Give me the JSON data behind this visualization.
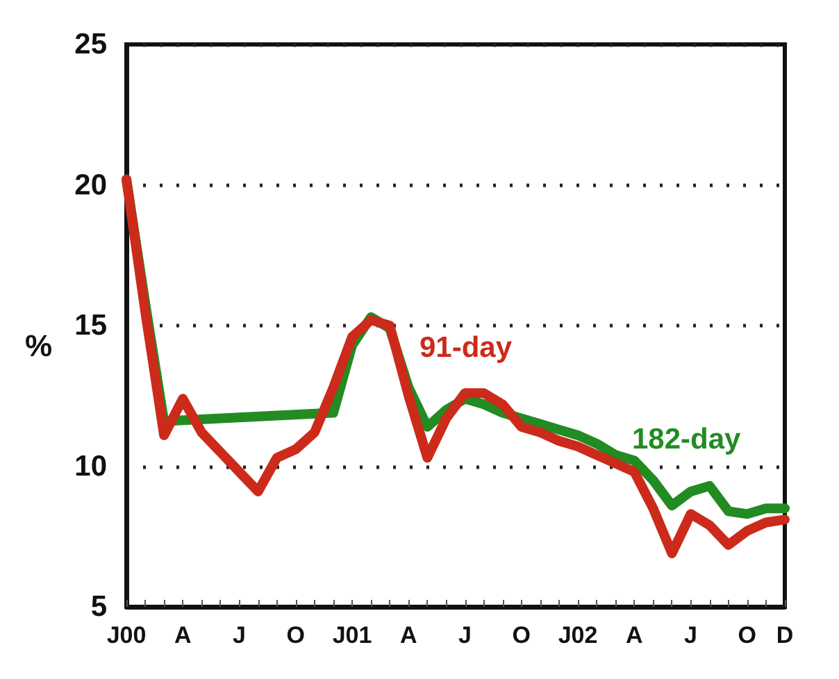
{
  "chart_data": {
    "type": "line",
    "ylabel": "%",
    "categories": [
      "J00",
      null,
      null,
      "A",
      null,
      null,
      "J",
      null,
      null,
      "O",
      null,
      null,
      "J01",
      null,
      null,
      "A",
      null,
      null,
      "J",
      null,
      null,
      "O",
      null,
      null,
      "J02",
      null,
      null,
      "A",
      null,
      null,
      "J",
      null,
      null,
      "O",
      null,
      "D"
    ],
    "series": [
      {
        "name": "182-day",
        "color": "#228b22",
        "values": [
          20.2,
          15.8,
          11.6,
          null,
          null,
          null,
          null,
          null,
          null,
          null,
          null,
          11.9,
          14.3,
          15.3,
          14.9,
          12.8,
          11.4,
          12.0,
          12.4,
          12.2,
          11.9,
          11.7,
          11.5,
          11.3,
          11.1,
          10.8,
          10.4,
          10.2,
          9.5,
          8.6,
          9.1,
          9.3,
          8.4,
          8.3,
          8.5,
          8.5
        ]
      },
      {
        "name": "91-day",
        "color": "#cc2a1a",
        "values": [
          20.2,
          15.5,
          11.1,
          12.4,
          11.2,
          10.5,
          9.8,
          9.1,
          10.3,
          10.6,
          11.2,
          12.8,
          14.6,
          15.2,
          15.0,
          12.5,
          10.3,
          11.7,
          12.6,
          12.6,
          12.2,
          11.4,
          11.2,
          10.9,
          10.7,
          10.4,
          10.1,
          9.8,
          8.5,
          6.9,
          8.3,
          7.9,
          7.2,
          7.7,
          8.0,
          8.1
        ]
      }
    ],
    "ylim": [
      5,
      25
    ],
    "yticks": [
      5,
      10,
      15,
      20,
      25
    ],
    "grid": "y",
    "legend": false,
    "marker": "none",
    "line_style": "solid"
  }
}
